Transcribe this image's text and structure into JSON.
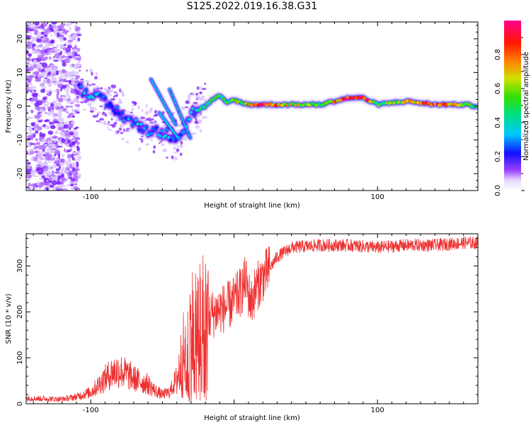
{
  "title": "S125.2022.019.16.38.G31",
  "chart_data": [
    {
      "type": "heatmap",
      "xlabel": "Height of straight line (km)",
      "ylabel": "Frequency (Hz)",
      "xlim": [
        -145,
        170
      ],
      "ylim": [
        -25,
        25
      ],
      "x_ticks": [
        -100,
        0,
        100
      ],
      "x_tick_labels": [
        "-100",
        "",
        "100"
      ],
      "y_ticks": [
        -20,
        -10,
        0,
        10,
        20
      ],
      "y_tick_labels": [
        "-20",
        "-10",
        "0",
        "10",
        "20"
      ],
      "colorbar": {
        "label": "Normalized spectral amplitude",
        "range": [
          0,
          1
        ],
        "ticks": [
          0.0,
          0.2,
          0.4,
          0.6,
          0.8
        ],
        "tick_labels": [
          "0.0",
          "0.2",
          "0.4",
          "0.6",
          "0.8"
        ]
      },
      "ridge": {
        "x": [
          -108,
          -100,
          -90,
          -80,
          -70,
          -60,
          -50,
          -40,
          -35,
          -30,
          -25,
          -20,
          -15,
          -10,
          -5,
          0,
          5,
          10,
          20,
          40,
          60,
          80,
          90,
          100,
          120,
          140,
          160,
          170
        ],
        "freq_hz": [
          5,
          4,
          1,
          -2,
          -5,
          -7,
          -8,
          -9,
          -7,
          -2,
          -1,
          0,
          2,
          3,
          1,
          2,
          1,
          0.5,
          0.5,
          0.5,
          0.5,
          2.5,
          2.5,
          0.5,
          1.5,
          0.5,
          0.5,
          0
        ],
        "amplitude": [
          0.3,
          0.35,
          0.3,
          0.25,
          0.35,
          0.3,
          0.35,
          0.25,
          0.3,
          0.3,
          0.4,
          0.45,
          0.5,
          0.55,
          0.5,
          0.6,
          0.6,
          0.7,
          0.85,
          0.65,
          0.6,
          0.95,
          0.9,
          0.55,
          0.65,
          0.9,
          0.6,
          0.5
        ]
      }
    },
    {
      "type": "line",
      "xlabel": "Height of straight line (km)",
      "ylabel": "SNR (10 * v/v)",
      "xlim": [
        -145,
        170
      ],
      "ylim": [
        0,
        370
      ],
      "x_ticks": [
        -100,
        0,
        100
      ],
      "x_tick_labels": [
        "-100",
        "",
        "100"
      ],
      "y_ticks": [
        0,
        100,
        200,
        300
      ],
      "y_tick_labels": [
        "0",
        "100",
        "200",
        "300"
      ],
      "series": [
        {
          "color": "#ee3030",
          "x": [
            -145,
            -120,
            -110,
            -100,
            -90,
            -85,
            -80,
            -75,
            -70,
            -65,
            -60,
            -55,
            -50,
            -45,
            -40,
            -35,
            -30,
            -25,
            -20,
            -15,
            -10,
            -5,
            0,
            5,
            8,
            10,
            12,
            15,
            20,
            25,
            30,
            40,
            60,
            80,
            100,
            120,
            140,
            160,
            170
          ],
          "y": [
            12,
            10,
            15,
            25,
            55,
            68,
            72,
            65,
            55,
            48,
            42,
            28,
            20,
            25,
            55,
            110,
            160,
            170,
            185,
            195,
            205,
            210,
            225,
            245,
            270,
            240,
            220,
            250,
            275,
            295,
            320,
            340,
            345,
            345,
            340,
            345,
            345,
            350,
            350
          ]
        }
      ]
    }
  ]
}
